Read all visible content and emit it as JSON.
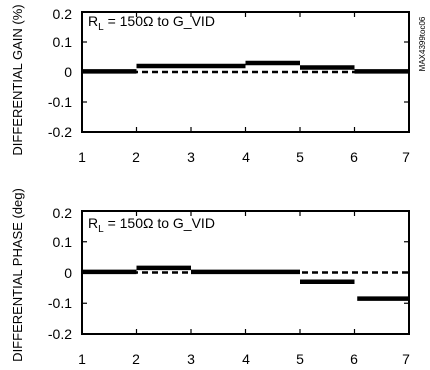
{
  "chart_data": [
    {
      "type": "line",
      "title": "",
      "xlabel": "",
      "ylabel": "DIFFERENTIAL GAIN (%)",
      "xlim": [
        1,
        7
      ],
      "ylim": [
        -0.2,
        0.2
      ],
      "x_ticks": [
        "1",
        "2",
        "3",
        "4",
        "5",
        "6",
        "7"
      ],
      "y_ticks": [
        "0.2",
        "0.1",
        "0",
        "-0.1",
        "-0.2"
      ],
      "grid": false,
      "annotation_main": "R",
      "annotation_sub": "L",
      "annotation_rest": " = 150Ω to G_VID",
      "side_label": "MAX4399toc06",
      "series": [
        {
          "style": "solid",
          "segments": [
            {
              "x": [
                1,
                2
              ],
              "y": [
                0.002,
                0.002
              ]
            },
            {
              "x": [
                2,
                4
              ],
              "y": [
                0.02,
                0.02
              ]
            },
            {
              "x": [
                4,
                5
              ],
              "y": [
                0.03,
                0.03
              ]
            },
            {
              "x": [
                5,
                6
              ],
              "y": [
                0.015,
                0.015
              ]
            },
            {
              "x": [
                6,
                7
              ],
              "y": [
                0.002,
                0.002
              ]
            }
          ]
        },
        {
          "style": "dashed",
          "segments": [
            {
              "x": [
                1,
                7
              ],
              "y": [
                0.0,
                0.0
              ]
            }
          ]
        }
      ]
    },
    {
      "type": "line",
      "title": "",
      "xlabel": "",
      "ylabel": "DIFFERENTIAL PHASE (deg)",
      "xlim": [
        1,
        7
      ],
      "ylim": [
        -0.2,
        0.2
      ],
      "x_ticks": [
        "1",
        "2",
        "3",
        "4",
        "5",
        "6",
        "7"
      ],
      "y_ticks": [
        "0.2",
        "0.1",
        "0",
        "-0.1",
        "-0.2"
      ],
      "grid": false,
      "annotation_main": "R",
      "annotation_sub": "L",
      "annotation_rest": " = 150Ω to G_VID",
      "series": [
        {
          "style": "solid",
          "segments": [
            {
              "x": [
                1,
                2
              ],
              "y": [
                0.002,
                0.002
              ]
            },
            {
              "x": [
                2,
                3
              ],
              "y": [
                0.015,
                0.015
              ]
            },
            {
              "x": [
                3,
                5
              ],
              "y": [
                0.002,
                0.002
              ]
            },
            {
              "x": [
                5,
                6
              ],
              "y": [
                -0.03,
                -0.03
              ]
            },
            {
              "x": [
                6.05,
                7
              ],
              "y": [
                -0.085,
                -0.085
              ]
            }
          ]
        },
        {
          "style": "dashed",
          "segments": [
            {
              "x": [
                1,
                7
              ],
              "y": [
                0.0,
                0.0
              ]
            }
          ]
        }
      ]
    }
  ]
}
